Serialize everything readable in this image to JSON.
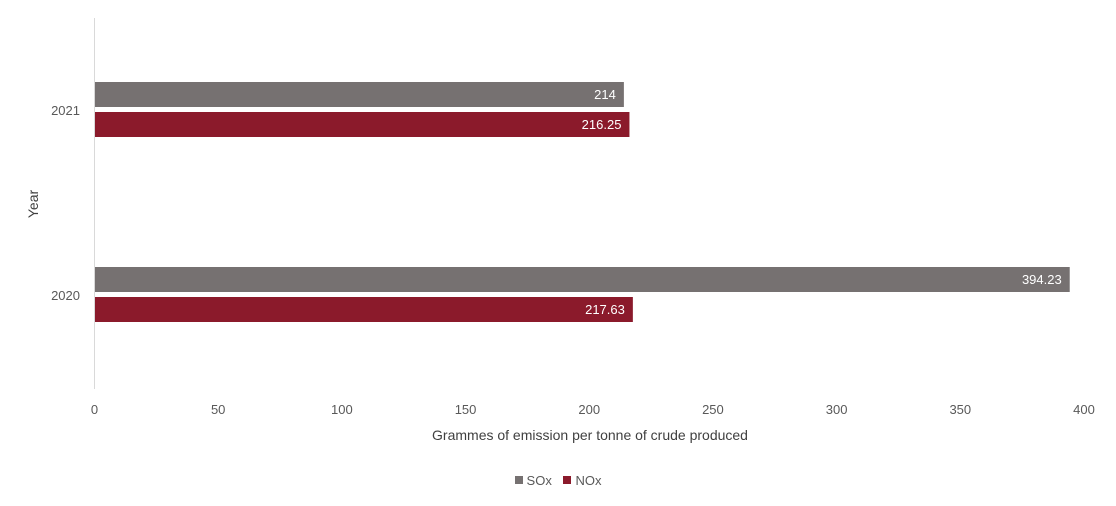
{
  "chart_data": {
    "type": "bar",
    "orientation": "horizontal",
    "categories": [
      "2021",
      "2020"
    ],
    "series": [
      {
        "name": "SOx",
        "color": "#767171",
        "values": [
          214,
          394.23
        ],
        "labels": [
          "214",
          "394.23"
        ]
      },
      {
        "name": "NOx",
        "color": "#8B1A2B",
        "values": [
          216.25,
          217.63
        ],
        "labels": [
          "216.25",
          "217.63"
        ]
      }
    ],
    "xlabel": "Grammes of emission per tonne of crude produced",
    "ylabel": "Year",
    "xlim": [
      0,
      400
    ],
    "xticks": [
      "0",
      "50",
      "100",
      "150",
      "200",
      "250",
      "300",
      "350",
      "400"
    ],
    "grid": false,
    "legend_position": "bottom"
  }
}
